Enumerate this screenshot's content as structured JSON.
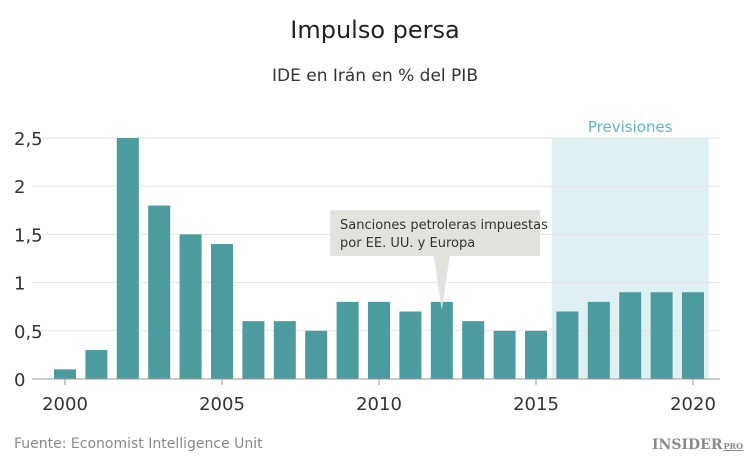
{
  "title": "Impulso persa",
  "subtitle": "IDE en Irán en % del PIB",
  "source": "Fuente: Economist Intelligence Unit",
  "logo": "INSIDER PRO",
  "colors": {
    "bar": "#4b9b9f",
    "forecast_bg": "#dff0f3",
    "forecast_label": "#5bb8c4",
    "annotation_bg": "#e3e3de"
  },
  "chart_data": {
    "type": "bar",
    "x": [
      2000,
      2001,
      2002,
      2003,
      2004,
      2005,
      2006,
      2007,
      2008,
      2009,
      2010,
      2011,
      2012,
      2013,
      2014,
      2015,
      2016,
      2017,
      2018,
      2019,
      2020
    ],
    "values": [
      0.1,
      0.3,
      2.5,
      1.8,
      1.5,
      1.4,
      0.6,
      0.6,
      0.5,
      0.8,
      0.8,
      0.7,
      0.8,
      0.6,
      0.5,
      0.5,
      0.7,
      0.8,
      0.9,
      0.9,
      0.9
    ],
    "ylim": [
      0,
      2.5
    ],
    "yticks": [
      {
        "v": 0,
        "label": "0"
      },
      {
        "v": 0.5,
        "label": "0,5"
      },
      {
        "v": 1,
        "label": "1"
      },
      {
        "v": 1.5,
        "label": "1,5"
      },
      {
        "v": 2,
        "label": "2"
      },
      {
        "v": 2.5,
        "label": "2,5"
      }
    ],
    "xticks": [
      {
        "v": 2000,
        "label": "2000"
      },
      {
        "v": 2005,
        "label": "2005"
      },
      {
        "v": 2010,
        "label": "2010"
      },
      {
        "v": 2015,
        "label": "2015"
      },
      {
        "v": 2020,
        "label": "2020"
      }
    ],
    "grid": true,
    "forecast": {
      "from": 2016,
      "to": 2020,
      "label": "Previsiones"
    },
    "annotation": {
      "x": 2012,
      "lines": [
        "Sanciones petroleras impuestas",
        "por EE. UU. y Europa"
      ]
    }
  }
}
